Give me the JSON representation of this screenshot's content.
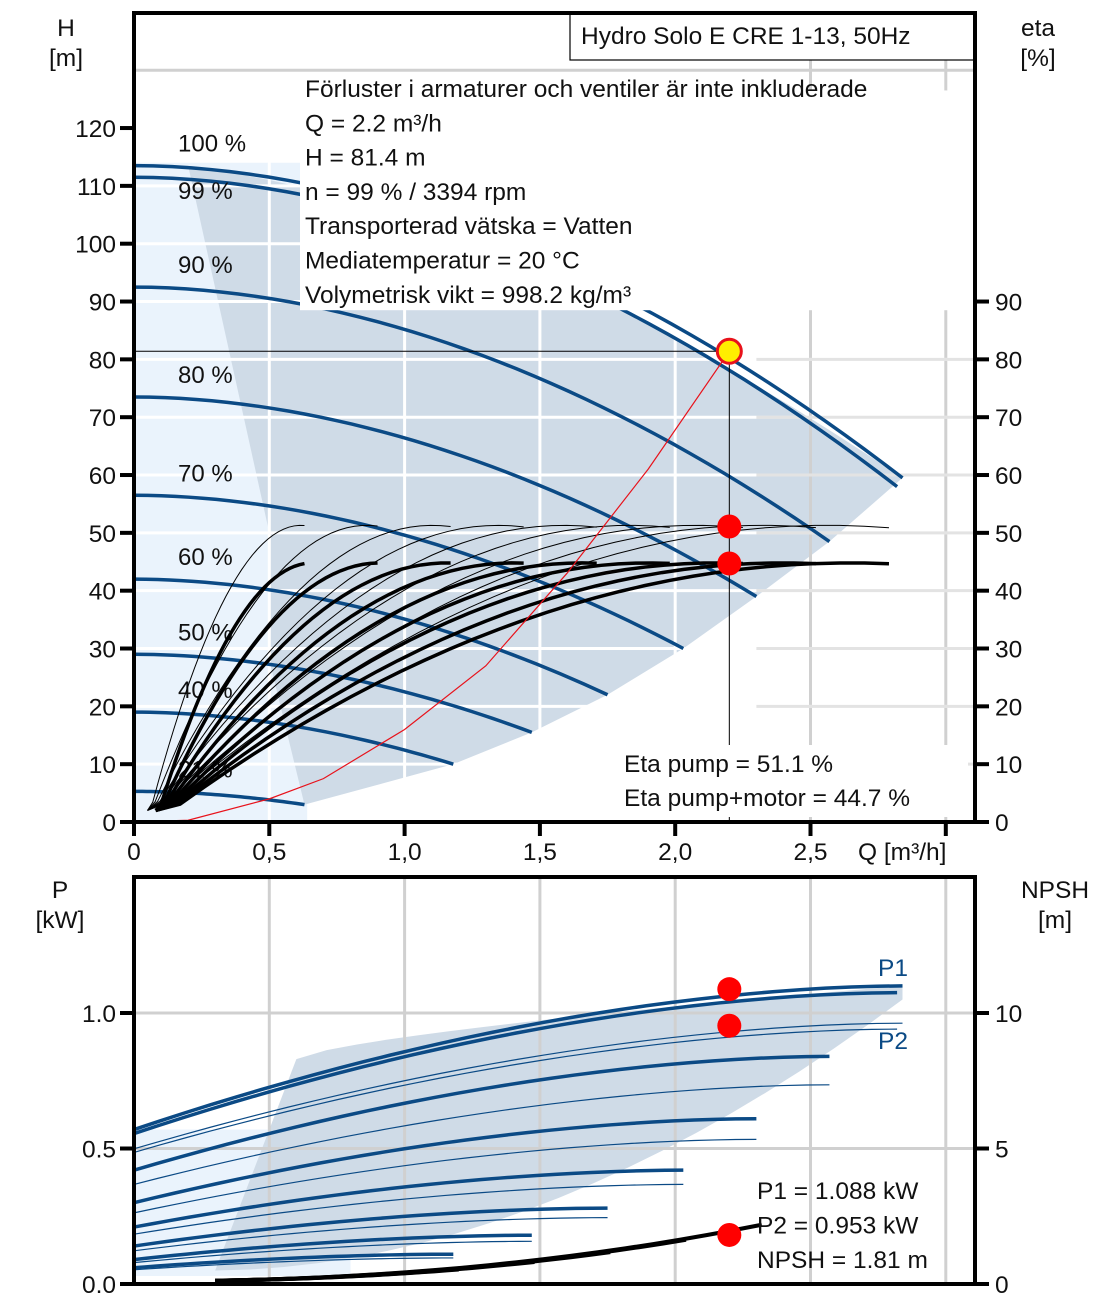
{
  "chart_data": [
    {
      "type": "line",
      "title": "Hydro Solo E CRE 1-13, 50Hz",
      "xlabel": "Q [m³/h]",
      "ylabel_left": [
        "H",
        "[m]"
      ],
      "ylabel_right": [
        "eta",
        "[%]"
      ],
      "x_ticks": [
        "0",
        "0,5",
        "1,0",
        "1,5",
        "2,0",
        "2,5"
      ],
      "x_tick_values": [
        0,
        0.5,
        1.0,
        1.5,
        2.0,
        2.5
      ],
      "y_left_ticks": [
        0,
        10,
        20,
        30,
        40,
        50,
        60,
        70,
        80,
        90,
        100,
        110,
        120
      ],
      "y_right_ticks": [
        0,
        10,
        20,
        30,
        40,
        50,
        60,
        70,
        80,
        90
      ],
      "xlim": [
        0,
        3.1
      ],
      "ylim": [
        0,
        137
      ],
      "grid": true,
      "info_lines": [
        "Förluster i armaturer och ventiler är inte inkluderade",
        "Q = 2.2 m³/h",
        "H = 81.4 m",
        "n = 99 % / 3394 rpm",
        "Transporterad vätska = Vatten",
        "Mediatemperatur = 20 °C",
        "Volymetrisk vikt = 998.2 kg/m³"
      ],
      "result_lines": [
        "Eta pump = 51.1 %",
        "Eta pump+motor = 44.7 %"
      ],
      "speed_curves": [
        {
          "label": "100 %",
          "shutoff_H": 113.5,
          "end_Q": 2.84,
          "end_H": 59.5
        },
        {
          "label": "99 %",
          "shutoff_H": 111.5,
          "end_Q": 2.82,
          "end_H": 58.0,
          "operating": true
        },
        {
          "label": "90 %",
          "shutoff_H": 92.5,
          "end_Q": 2.57,
          "end_H": 48.5
        },
        {
          "label": "80 %",
          "shutoff_H": 73.5,
          "end_Q": 2.3,
          "end_H": 39.0
        },
        {
          "label": "70 %",
          "shutoff_H": 56.5,
          "end_Q": 2.03,
          "end_H": 30.0
        },
        {
          "label": "60 %",
          "shutoff_H": 42.0,
          "end_Q": 1.75,
          "end_H": 22.0
        },
        {
          "label": "50 %",
          "shutoff_H": 29.0,
          "end_Q": 1.47,
          "end_H": 15.5
        },
        {
          "label": "40 %",
          "shutoff_H": 19.0,
          "end_Q": 1.18,
          "end_H": 10.0
        },
        {
          "label": "21 %",
          "shutoff_H": 5.3,
          "end_Q": 0.63,
          "end_H": 3.0
        }
      ],
      "system_curve": {
        "points": [
          [
            0,
            0
          ],
          [
            0.2,
            0.3
          ],
          [
            0.5,
            4.0
          ],
          [
            0.7,
            7.5
          ],
          [
            1.0,
            16.0
          ],
          [
            1.3,
            27.0
          ],
          [
            1.6,
            43.0
          ],
          [
            1.9,
            61.0
          ],
          [
            2.2,
            81.4
          ]
        ]
      },
      "operating_point": {
        "Q": 2.2,
        "H": 81.4
      },
      "eta_points": [
        {
          "Q": 2.2,
          "eta": 51.1
        },
        {
          "Q": 2.2,
          "eta": 44.7
        }
      ],
      "eta_pump_peak": 51.3,
      "eta_total_peak": 44.8
    },
    {
      "type": "line",
      "xlabel": "Q [m³/h]",
      "ylabel_left": [
        "P",
        "[kW]"
      ],
      "ylabel_right": [
        "NPSH",
        "[m]"
      ],
      "y_left_ticks": [
        "0.0",
        "0.5",
        "1.0"
      ],
      "y_left_tick_values": [
        0,
        0.5,
        1.0
      ],
      "y_right_ticks": [
        0,
        5,
        10
      ],
      "ylim": [
        0,
        1.5
      ],
      "grid": true,
      "series_labels": [
        "P1",
        "P2"
      ],
      "result_lines": [
        "P1 = 1.088 kW",
        "P2 = 0.953 kW",
        "NPSH = 1.81 m"
      ],
      "power_curves": [
        {
          "speed": "100 %",
          "P1_start": 0.57,
          "P1_end": 1.1,
          "end_Q": 2.84
        },
        {
          "speed": "99 %",
          "P1_start": 0.555,
          "P1_end": 1.075,
          "end_Q": 2.82
        },
        {
          "speed": "90 %",
          "P1_start": 0.42,
          "P1_end": 0.84,
          "end_Q": 2.57
        },
        {
          "speed": "80 %",
          "P1_start": 0.3,
          "P1_end": 0.61,
          "end_Q": 2.3
        },
        {
          "speed": "70 %",
          "P1_start": 0.21,
          "P1_end": 0.42,
          "end_Q": 2.03
        },
        {
          "speed": "60 %",
          "P1_start": 0.14,
          "P1_end": 0.28,
          "end_Q": 1.75
        },
        {
          "speed": "50 %",
          "P1_start": 0.09,
          "P1_end": 0.18,
          "end_Q": 1.47
        },
        {
          "speed": "40 %",
          "P1_start": 0.06,
          "P1_end": 0.11,
          "end_Q": 1.18
        }
      ],
      "operating_points": [
        {
          "Q": 2.2,
          "P1": 1.088
        },
        {
          "Q": 2.2,
          "P2": 0.953
        },
        {
          "Q": 2.2,
          "NPSH": 1.81
        }
      ]
    }
  ]
}
